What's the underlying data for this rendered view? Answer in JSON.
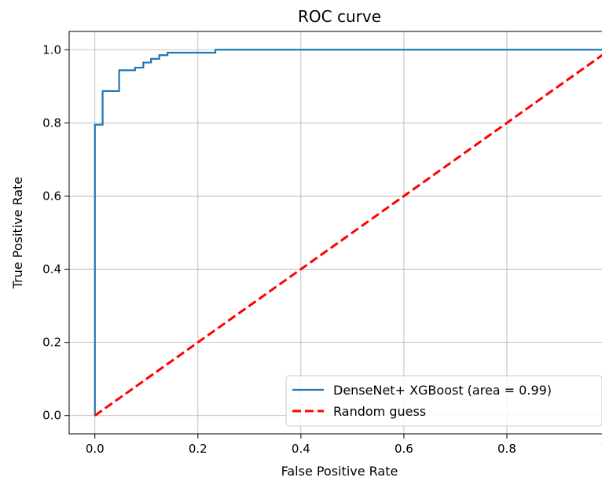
{
  "chart_data": {
    "type": "line",
    "title": "ROC curve",
    "xlabel": "False Positive Rate",
    "ylabel": "True Positive Rate",
    "xlim": [
      -0.05,
      1.0
    ],
    "ylim": [
      -0.05,
      1.05
    ],
    "xticks": [
      0.0,
      0.2,
      0.4,
      0.6,
      0.8,
      1.0
    ],
    "xtick_labels": [
      "0.0",
      "0.2",
      "0.4",
      "0.6",
      "0.8",
      "1.0"
    ],
    "yticks": [
      0.0,
      0.2,
      0.4,
      0.6,
      0.8,
      1.0
    ],
    "ytick_labels": [
      "0.0",
      "0.2",
      "0.4",
      "0.6",
      "0.8",
      "1.0"
    ],
    "grid": true,
    "legend_position": "bottom-right",
    "series": [
      {
        "name": "DenseNet+ XGBoost (area = 0.99)",
        "color": "#1f77b4",
        "style": "solid",
        "x": [
          0.0,
          0.0,
          0.0,
          0.015,
          0.015,
          0.047,
          0.047,
          0.078,
          0.078,
          0.094,
          0.094,
          0.109,
          0.109,
          0.125,
          0.125,
          0.141,
          0.141,
          0.234,
          0.234,
          1.0
        ],
        "y": [
          0.0,
          0.795,
          0.795,
          0.795,
          0.887,
          0.887,
          0.944,
          0.944,
          0.951,
          0.951,
          0.965,
          0.965,
          0.975,
          0.975,
          0.985,
          0.985,
          0.992,
          0.992,
          1.0,
          1.0
        ]
      },
      {
        "name": "Random guess",
        "color": "#ff0000",
        "style": "dashed",
        "x": [
          0.0,
          1.0
        ],
        "y": [
          0.0,
          1.0
        ]
      }
    ]
  }
}
